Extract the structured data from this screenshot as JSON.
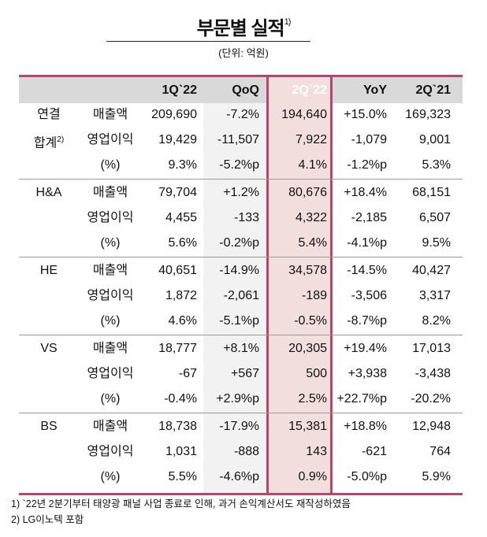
{
  "title": "부문별 실적",
  "title_note": "1)",
  "unit": "(단위: 억원)",
  "colors": {
    "accent": "#b8466c",
    "highlight_col": "#f3dede",
    "header_bg": "#d9d9d9"
  },
  "columns": [
    "1Q`22",
    "QoQ",
    "2Q`22",
    "YoY",
    "2Q`21"
  ],
  "groups": [
    {
      "name": "연결",
      "name2": "합계",
      "name2_note": "2)",
      "rows": [
        {
          "label": "매출액",
          "values": [
            "209,690",
            "-7.2%",
            "194,640",
            "+15.0%",
            "169,323"
          ]
        },
        {
          "label": "영업이익",
          "values": [
            "19,429",
            "-11,507",
            "7,922",
            "-1,079",
            "9,001"
          ]
        },
        {
          "label": "(%)",
          "values": [
            "9.3%",
            "-5.2%p",
            "4.1%",
            "-1.2%p",
            "5.3%"
          ]
        }
      ]
    },
    {
      "name": "H&A",
      "rows": [
        {
          "label": "매출액",
          "values": [
            "79,704",
            "+1.2%",
            "80,676",
            "+18.4%",
            "68,151"
          ]
        },
        {
          "label": "영업이익",
          "values": [
            "4,455",
            "-133",
            "4,322",
            "-2,185",
            "6,507"
          ]
        },
        {
          "label": "(%)",
          "values": [
            "5.6%",
            "-0.2%p",
            "5.4%",
            "-4.1%p",
            "9.5%"
          ]
        }
      ]
    },
    {
      "name": "HE",
      "rows": [
        {
          "label": "매출액",
          "values": [
            "40,651",
            "-14.9%",
            "34,578",
            "-14.5%",
            "40,427"
          ]
        },
        {
          "label": "영업이익",
          "values": [
            "1,872",
            "-2,061",
            "-189",
            "-3,506",
            "3,317"
          ]
        },
        {
          "label": "(%)",
          "values": [
            "4.6%",
            "-5.1%p",
            "-0.5%",
            "-8.7%p",
            "8.2%"
          ]
        }
      ]
    },
    {
      "name": "VS",
      "rows": [
        {
          "label": "매출액",
          "values": [
            "18,777",
            "+8.1%",
            "20,305",
            "+19.4%",
            "17,013"
          ]
        },
        {
          "label": "영업이익",
          "values": [
            "-67",
            "+567",
            "500",
            "+3,938",
            "-3,438"
          ]
        },
        {
          "label": "(%)",
          "values": [
            "-0.4%",
            "+2.9%p",
            "2.5%",
            "+22.7%p",
            "-20.2%"
          ]
        }
      ]
    },
    {
      "name": "BS",
      "rows": [
        {
          "label": "매출액",
          "values": [
            "18,738",
            "-17.9%",
            "15,381",
            "+18.8%",
            "12,948"
          ]
        },
        {
          "label": "영업이익",
          "values": [
            "1,031",
            "-888",
            "143",
            "-621",
            "764"
          ]
        },
        {
          "label": "(%)",
          "values": [
            "5.5%",
            "-4.6%p",
            "0.9%",
            "-5.0%p",
            "5.9%"
          ]
        }
      ]
    }
  ],
  "footnotes": [
    "1) `22년 2분기부터 태양광 패널 사업 종료로 인해, 과거 손익계산서도 재작성하였음",
    "2) LG이노텍 포함"
  ]
}
